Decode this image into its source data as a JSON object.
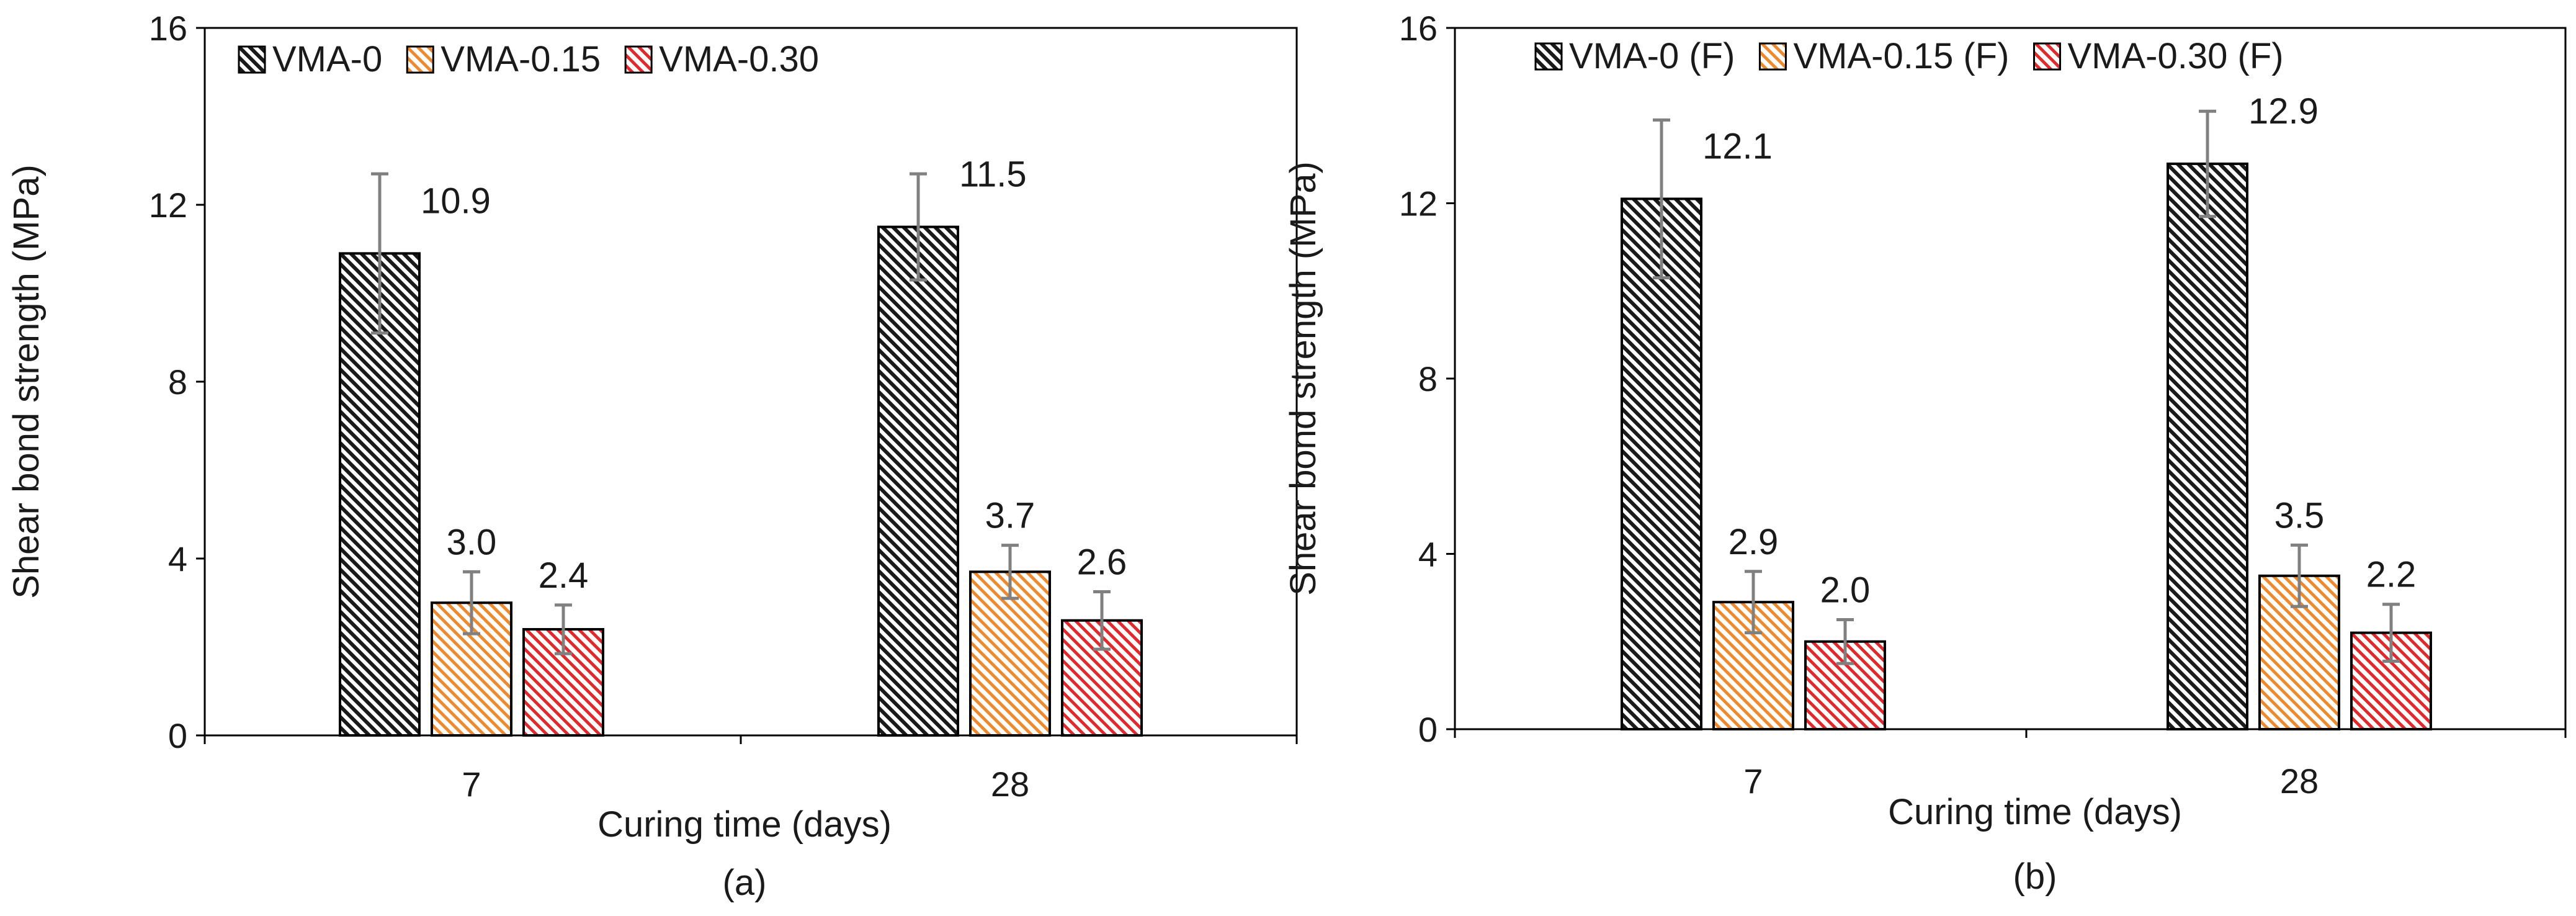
{
  "colors": {
    "series_0": "#1a1a1a",
    "series_1": "#ee8a2e",
    "series_2": "#e0292c",
    "error_bar": "#808080"
  },
  "chart_data": [
    {
      "type": "bar",
      "panel_label": "(a)",
      "title": "",
      "xlabel": "Curing time (days)",
      "ylabel": "Shear bond strength (MPa)",
      "ylim": [
        0,
        16
      ],
      "yticks": [
        0,
        4,
        8,
        12,
        16
      ],
      "categories": [
        "7",
        "28"
      ],
      "legend_position": "top-left",
      "series": [
        {
          "name": "VMA-0",
          "values": [
            10.9,
            11.5
          ],
          "labels": [
            "10.9",
            "11.5"
          ],
          "error": [
            1.8,
            1.2
          ]
        },
        {
          "name": "VMA-0.15",
          "values": [
            3.0,
            3.7
          ],
          "labels": [
            "3.0",
            "3.7"
          ],
          "error": [
            0.7,
            0.6
          ]
        },
        {
          "name": "VMA-0.30",
          "values": [
            2.4,
            2.6
          ],
          "labels": [
            "2.4",
            "2.6"
          ],
          "error": [
            0.55,
            0.65
          ]
        }
      ]
    },
    {
      "type": "bar",
      "panel_label": "(b)",
      "title": "",
      "xlabel": "Curing time (days)",
      "ylabel": "Shear bond strength (MPa)",
      "ylim": [
        0,
        16
      ],
      "yticks": [
        0,
        4,
        8,
        12,
        16
      ],
      "categories": [
        "7",
        "28"
      ],
      "legend_position": "top-left",
      "series": [
        {
          "name": "VMA-0 (F)",
          "values": [
            12.1,
            12.9
          ],
          "labels": [
            "12.1",
            "12.9"
          ],
          "error": [
            1.8,
            1.2
          ]
        },
        {
          "name": "VMA-0.15 (F)",
          "values": [
            2.9,
            3.5
          ],
          "labels": [
            "2.9",
            "3.5"
          ],
          "error": [
            0.7,
            0.7
          ]
        },
        {
          "name": "VMA-0.30 (F)",
          "values": [
            2.0,
            2.2
          ],
          "labels": [
            "2.0",
            "2.2"
          ],
          "error": [
            0.5,
            0.65
          ]
        }
      ]
    }
  ]
}
